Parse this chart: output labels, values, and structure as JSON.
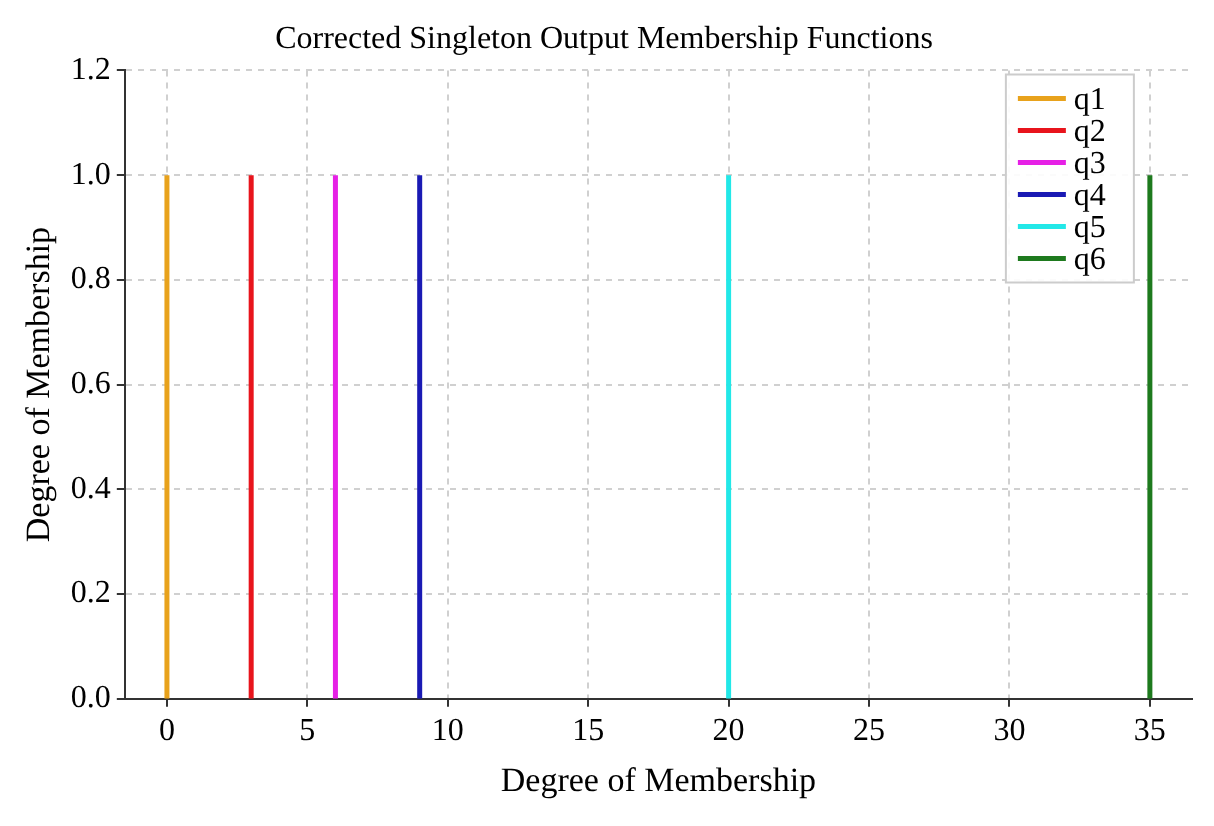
{
  "chart_data": {
    "type": "line",
    "title": "Corrected Singleton Output Membership Functions",
    "xlabel": "Degree of Membership",
    "ylabel": "Degree of Membership",
    "series": [
      {
        "name": "q1",
        "color": "#e8a21c",
        "x": [
          0,
          0
        ],
        "values": [
          0,
          1
        ]
      },
      {
        "name": "q2",
        "color": "#e8141c",
        "x": [
          3,
          3
        ],
        "values": [
          0,
          1
        ]
      },
      {
        "name": "q3",
        "color": "#e620e6",
        "x": [
          6,
          6
        ],
        "values": [
          0,
          1
        ]
      },
      {
        "name": "q4",
        "color": "#1a1ab4",
        "x": [
          9,
          9
        ],
        "values": [
          0,
          1
        ]
      },
      {
        "name": "q5",
        "color": "#22e8e8",
        "x": [
          20,
          20
        ],
        "values": [
          0,
          1
        ]
      },
      {
        "name": "q6",
        "color": "#1e7a1e",
        "x": [
          35,
          35
        ],
        "values": [
          0,
          1
        ]
      }
    ],
    "xlim": [
      -1.5,
      36.5
    ],
    "xticks": [
      0,
      5,
      10,
      15,
      20,
      25,
      30,
      35
    ],
    "ylim": [
      0,
      1.2
    ],
    "yticks": [
      {
        "value": 0,
        "label": "0.0"
      },
      0.2,
      0.4,
      0.6,
      0.8,
      {
        "value": 1,
        "label": "1.0"
      },
      1.2
    ],
    "grid": true,
    "legend": "top right",
    "marker": "none",
    "line_style": "solid"
  }
}
